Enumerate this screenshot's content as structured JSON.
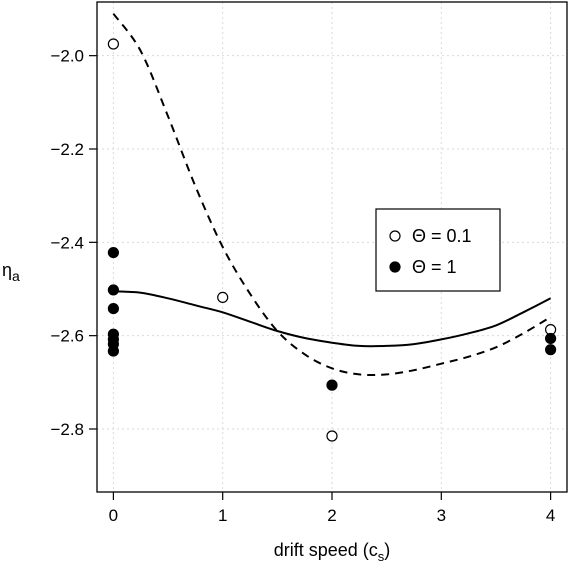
{
  "chart_data": {
    "type": "scatter",
    "xlabel": "drift speed (c",
    "xlabel_sub": "s",
    "xlabel_suffix": ")",
    "ylabel": "η",
    "ylabel_sub": "a",
    "xlim": [
      -0.15,
      4.15
    ],
    "ylim": [
      -2.935,
      -1.885
    ],
    "x_ticks": [
      0,
      1,
      2,
      3,
      4
    ],
    "y_ticks": [
      -2.8,
      -2.6,
      -2.4,
      -2.2,
      -2.0
    ],
    "y_tick_labels": [
      "−2.8",
      "−2.6",
      "−2.4",
      "−2.2",
      "−2.0"
    ],
    "grid": true,
    "legend_position": "right",
    "series": [
      {
        "name": "Θ = 0.1",
        "marker": "open-circle",
        "points": [
          [
            0,
            -1.975
          ],
          [
            1,
            -2.518
          ],
          [
            2,
            -2.815
          ],
          [
            4,
            -2.587
          ]
        ]
      },
      {
        "name": "Θ = 1",
        "marker": "filled-circle",
        "points": [
          [
            0,
            -2.422
          ],
          [
            0,
            -2.502
          ],
          [
            0,
            -2.542
          ],
          [
            0,
            -2.597
          ],
          [
            0,
            -2.608
          ],
          [
            0,
            -2.618
          ],
          [
            0,
            -2.633
          ],
          [
            2,
            -2.706
          ],
          [
            4,
            -2.606
          ],
          [
            4,
            -2.63
          ]
        ]
      }
    ],
    "fit_curves": [
      {
        "series": "Θ = 0.1",
        "style": "dashed",
        "points": [
          [
            0,
            -1.91
          ],
          [
            0.25,
            -1.99
          ],
          [
            0.5,
            -2.13
          ],
          [
            0.75,
            -2.28
          ],
          [
            1.0,
            -2.41
          ],
          [
            1.25,
            -2.51
          ],
          [
            1.5,
            -2.59
          ],
          [
            1.75,
            -2.64
          ],
          [
            2.0,
            -2.67
          ],
          [
            2.25,
            -2.683
          ],
          [
            2.5,
            -2.683
          ],
          [
            2.75,
            -2.674
          ],
          [
            3.0,
            -2.66
          ],
          [
            3.25,
            -2.645
          ],
          [
            3.5,
            -2.625
          ],
          [
            3.75,
            -2.595
          ],
          [
            4.0,
            -2.56
          ]
        ]
      },
      {
        "series": "Θ = 1",
        "style": "solid",
        "points": [
          [
            0,
            -2.505
          ],
          [
            0.25,
            -2.508
          ],
          [
            0.5,
            -2.52
          ],
          [
            0.75,
            -2.535
          ],
          [
            1.0,
            -2.55
          ],
          [
            1.25,
            -2.57
          ],
          [
            1.5,
            -2.59
          ],
          [
            1.75,
            -2.605
          ],
          [
            2.0,
            -2.615
          ],
          [
            2.25,
            -2.622
          ],
          [
            2.5,
            -2.622
          ],
          [
            2.75,
            -2.618
          ],
          [
            3.0,
            -2.608
          ],
          [
            3.25,
            -2.595
          ],
          [
            3.5,
            -2.578
          ],
          [
            3.75,
            -2.55
          ],
          [
            4.0,
            -2.52
          ]
        ]
      }
    ]
  }
}
